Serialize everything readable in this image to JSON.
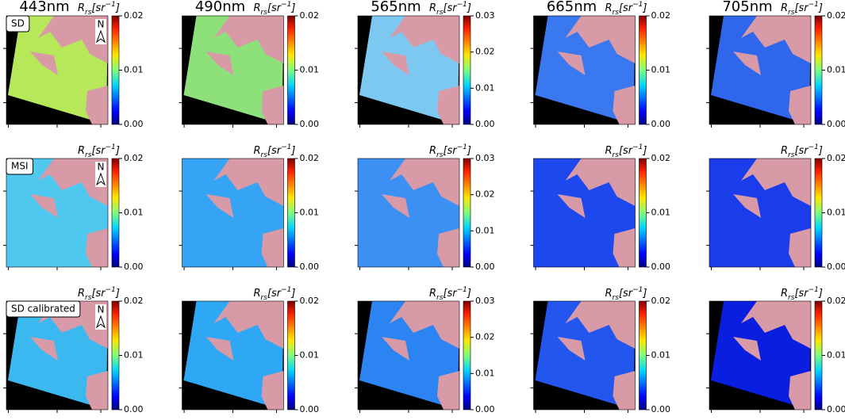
{
  "columns": [
    {
      "title": "443nm",
      "ticks": [
        {
          "value": 0,
          "label": "0.00"
        },
        {
          "value": 0.01,
          "label": "0.01"
        },
        {
          "value": 0.02,
          "label": "0.02"
        }
      ],
      "clim": [
        0,
        0.02
      ]
    },
    {
      "title": "490nm",
      "ticks": [
        {
          "value": 0,
          "label": "0.00"
        },
        {
          "value": 0.01,
          "label": "0.01"
        },
        {
          "value": 0.02,
          "label": "0.02"
        }
      ],
      "clim": [
        0,
        0.02
      ]
    },
    {
      "title": "565nm",
      "ticks": [
        {
          "value": 0,
          "label": "0.00"
        },
        {
          "value": 0.01,
          "label": "0.01"
        },
        {
          "value": 0.02,
          "label": "0.02"
        },
        {
          "value": 0.03,
          "label": "0.03"
        }
      ],
      "clim": [
        0,
        0.03
      ]
    },
    {
      "title": "665nm",
      "ticks": [
        {
          "value": 0,
          "label": "0.00"
        },
        {
          "value": 0.01,
          "label": "0.01"
        },
        {
          "value": 0.02,
          "label": "0.02"
        }
      ],
      "clim": [
        0,
        0.02
      ]
    },
    {
      "title": "705nm",
      "ticks": [
        {
          "value": 0,
          "label": "0.00"
        },
        {
          "value": 0.01,
          "label": "0.01"
        },
        {
          "value": 0.02,
          "label": "0.02"
        }
      ],
      "clim": [
        0,
        0.02
      ]
    }
  ],
  "rows": [
    {
      "label": "SD"
    },
    {
      "label": "MSI"
    },
    {
      "label": "SD calibrated"
    }
  ],
  "unit": {
    "symbol": "R",
    "subscript": "rs",
    "open": "[sr",
    "superscript": "−1",
    "close": "]"
  },
  "north": "N"
}
